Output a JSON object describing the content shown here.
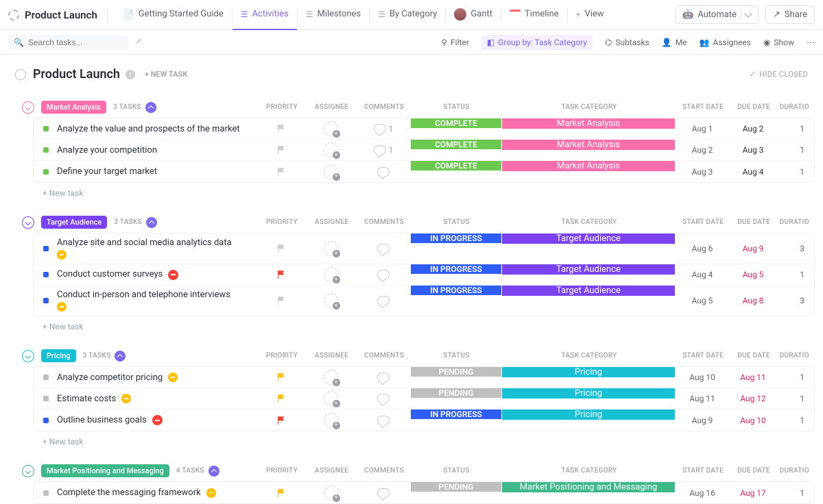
{
  "project_title": "Product Launch",
  "views": {
    "getting_started": "Getting Started Guide",
    "activities": "Activities",
    "milestones": "Milestones",
    "by_category": "By Category",
    "gantt": "Gantt",
    "timeline": "Timeline",
    "add_view": "View"
  },
  "top_actions": {
    "automate": "Automate",
    "share": "Share"
  },
  "toolbar": {
    "search_placeholder": "Search tasks...",
    "filter": "Filter",
    "group_by": "Group by: Task Category",
    "subtasks": "Subtasks",
    "me": "Me",
    "assignees": "Assignees",
    "show": "Show"
  },
  "list_header": {
    "title": "Product Launch",
    "new_task": "+ NEW TASK",
    "hide_closed": "HIDE CLOSED"
  },
  "columns": {
    "priority": "PRIORITY",
    "assignee": "ASSIGNEE",
    "comments": "COMMENTS",
    "status": "STATUS",
    "category": "TASK CATEGORY",
    "start": "START DATE",
    "due": "DUE DATE",
    "duration": "DURATIO"
  },
  "new_task_label": "+ New task",
  "colors": {
    "complete": "#6bc950",
    "in_progress": "#2e5ef5",
    "pending": "#bfbfbf",
    "cat_market_analysis": "#f96eab",
    "cat_target_audience": "#7b42f0",
    "cat_pricing": "#18c0d6",
    "cat_positioning": "#3db88b",
    "caret_market": "#f96eab",
    "caret_target": "#7b42f0",
    "caret_pricing": "#18c0d6",
    "caret_positioning": "#3db88b",
    "flag_gray": "#c9ccd1",
    "flag_red": "#f44336",
    "flag_yellow": "#ffc107"
  },
  "groups": [
    {
      "id": "market_analysis",
      "label": "Market Analysis",
      "label_bg": "#f96eab",
      "caret_color": "#f96eab",
      "count": "3 TASKS",
      "category_bg": "#f96eab",
      "show_new_task": true,
      "tasks": [
        {
          "marker": "#6bc950",
          "title": "Analyze the value and prospects of the market",
          "flag": "#c9ccd1",
          "comments": "1",
          "status": "COMPLETE",
          "status_bg": "#6bc950",
          "category": "Market Analysis",
          "start": "Aug 1",
          "due": "Aug 2",
          "overdue": false,
          "duration": "1"
        },
        {
          "marker": "#6bc950",
          "title": "Analyze your competition",
          "flag": "#c9ccd1",
          "comments": "1",
          "status": "COMPLETE",
          "status_bg": "#6bc950",
          "category": "Market Analysis",
          "start": "Aug 2",
          "due": "Aug 3",
          "overdue": false,
          "duration": "1"
        },
        {
          "marker": "#6bc950",
          "title": "Define your target market",
          "flag": "#c9ccd1",
          "comments": "",
          "status": "COMPLETE",
          "status_bg": "#6bc950",
          "category": "Market Analysis",
          "start": "Aug 3",
          "due": "Aug 4",
          "overdue": false,
          "duration": "1"
        }
      ]
    },
    {
      "id": "target_audience",
      "label": "Target Audience",
      "label_bg": "#7b42f0",
      "caret_color": "#7b42f0",
      "count": "3 TASKS",
      "category_bg": "#7b42f0",
      "show_new_task": true,
      "tasks": [
        {
          "marker": "#2e5ef5",
          "title": "Analyze site and social media analytics data",
          "tag": true,
          "flag": "#c9ccd1",
          "comments": "",
          "status": "IN PROGRESS",
          "status_bg": "#2e5ef5",
          "category": "Target Audience",
          "start": "Aug 6",
          "due": "Aug 9",
          "overdue": true,
          "duration": "3"
        },
        {
          "marker": "#2e5ef5",
          "title": "Conduct customer surveys",
          "stop": true,
          "flag": "#f44336",
          "comments": "",
          "status": "IN PROGRESS",
          "status_bg": "#2e5ef5",
          "category": "Target Audience",
          "start": "Aug 4",
          "due": "Aug 5",
          "overdue": true,
          "duration": "1"
        },
        {
          "marker": "#2e5ef5",
          "title": "Conduct in-person and telephone interviews",
          "tag": true,
          "flag": "#c9ccd1",
          "comments": "",
          "status": "IN PROGRESS",
          "status_bg": "#2e5ef5",
          "category": "Target Audience",
          "start": "Aug 5",
          "due": "Aug 8",
          "overdue": true,
          "duration": "3"
        }
      ]
    },
    {
      "id": "pricing",
      "label": "Pricing",
      "label_bg": "#18c0d6",
      "caret_color": "#18c0d6",
      "count": "3 TASKS",
      "category_bg": "#18c0d6",
      "show_new_task": true,
      "tasks": [
        {
          "marker": "#bfbfbf",
          "title": "Analyze competitor pricing",
          "tag_inline": true,
          "flag": "#ffc107",
          "comments": "",
          "status": "PENDING",
          "status_bg": "#bfbfbf",
          "category": "Pricing",
          "start": "Aug 10",
          "due": "Aug 11",
          "overdue": true,
          "duration": "1"
        },
        {
          "marker": "#bfbfbf",
          "title": "Estimate costs",
          "tag_inline": true,
          "flag": "#ffc107",
          "comments": "",
          "status": "PENDING",
          "status_bg": "#bfbfbf",
          "category": "Pricing",
          "start": "Aug 11",
          "due": "Aug 12",
          "overdue": true,
          "duration": "1"
        },
        {
          "marker": "#2e5ef5",
          "title": "Outline business goals",
          "stop": true,
          "flag": "#f44336",
          "comments": "",
          "status": "IN PROGRESS",
          "status_bg": "#2e5ef5",
          "category": "Pricing",
          "start": "Aug 9",
          "due": "Aug 10",
          "overdue": true,
          "duration": "1"
        }
      ]
    },
    {
      "id": "positioning",
      "label": "Market Positioning and Messaging",
      "label_bg": "#3db88b",
      "caret_color": "#3db88b",
      "count": "4 TASKS",
      "category_bg": "#3db88b",
      "show_new_task": false,
      "tasks": [
        {
          "marker": "#bfbfbf",
          "title": "Complete the messaging framework",
          "tag_inline": true,
          "flag": "#ffc107",
          "comments": "",
          "status": "PENDING",
          "status_bg": "#bfbfbf",
          "category": "Market Positioning and Messaging",
          "start": "Aug 16",
          "due": "Aug 17",
          "overdue": true,
          "duration": "1"
        }
      ]
    }
  ]
}
